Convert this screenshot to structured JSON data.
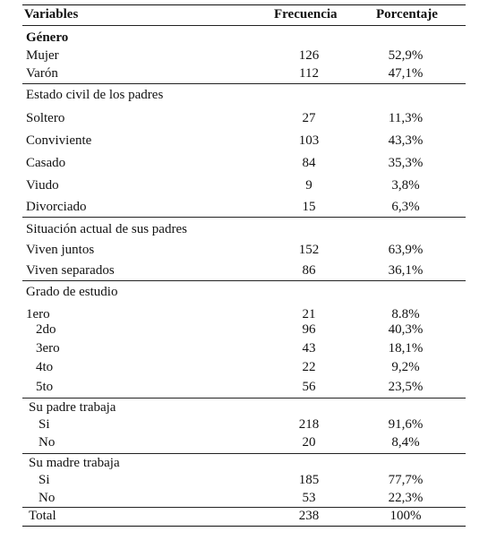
{
  "table": {
    "headers": {
      "variable": "Variables",
      "frequency": "Frecuencia",
      "percent": "Porcentaje"
    },
    "sections": [
      {
        "title": "Género",
        "bold": true,
        "rows": [
          {
            "label": "Mujer",
            "frequency": "126",
            "percent": "52,9%"
          },
          {
            "label": "Varón",
            "frequency": "112",
            "percent": "47,1%"
          }
        ]
      },
      {
        "title": "Estado civil de los padres",
        "bold": false,
        "rows": [
          {
            "label": "Soltero",
            "frequency": "27",
            "percent": "11,3%"
          },
          {
            "label": "Conviviente",
            "frequency": "103",
            "percent": "43,3%"
          },
          {
            "label": "Casado",
            "frequency": "84",
            "percent": "35,3%"
          },
          {
            "label": "Viudo",
            "frequency": "9",
            "percent": "3,8%"
          },
          {
            "label": "Divorciado",
            "frequency": "15",
            "percent": "6,3%"
          }
        ]
      },
      {
        "title": "Situación actual de sus padres",
        "bold": false,
        "rows": [
          {
            "label": "Viven juntos",
            "frequency": "152",
            "percent": "63,9%"
          },
          {
            "label": "Viven separados",
            "frequency": "86",
            "percent": "36,1%"
          }
        ]
      },
      {
        "title": "Grado de estudio",
        "bold": false,
        "rows": [
          {
            "label": "1ero",
            "frequency": "21",
            "percent": "8.8%"
          },
          {
            "label": "2do",
            "frequency": "96",
            "percent": "40,3%"
          },
          {
            "label": "3ero",
            "frequency": "43",
            "percent": "18,1%"
          },
          {
            "label": "4to",
            "frequency": "22",
            "percent": "9,2%"
          },
          {
            "label": "5to",
            "frequency": "56",
            "percent": "23,5%"
          }
        ]
      },
      {
        "title": "Su padre trabaja",
        "bold": false,
        "rows": [
          {
            "label": "Si",
            "frequency": "218",
            "percent": "91,6%"
          },
          {
            "label": "No",
            "frequency": "20",
            "percent": "8,4%"
          }
        ]
      },
      {
        "title": "Su madre trabaja",
        "bold": false,
        "rows": [
          {
            "label": "Si",
            "frequency": "185",
            "percent": "77,7%"
          },
          {
            "label": "No",
            "frequency": "53",
            "percent": "22,3%"
          }
        ]
      }
    ],
    "total": {
      "label": "Total",
      "frequency": "238",
      "percent": "100%"
    }
  }
}
